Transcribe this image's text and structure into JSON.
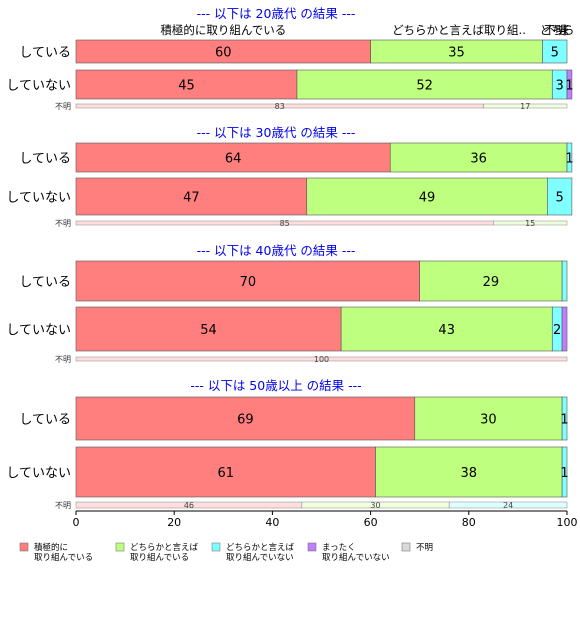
{
  "chart_data": {
    "type": "bar",
    "orientation": "horizontal",
    "stacked": true,
    "percent": true,
    "xlim": [
      0,
      100
    ],
    "x_ticks": [
      "0",
      "20",
      "40",
      "60",
      "80",
      "100"
    ],
    "category_labels": [
      "積極的に取り組んでいる",
      "どちらかと言えば取り組..",
      "どちらかと言えば取り組んでいない",
      "まったく取り組んでいない",
      "不明"
    ],
    "colors": {
      "active": "#ff7f7f",
      "somewhat_active": "#bfff7f",
      "somewhat_inactive": "#7fffff",
      "not_active": "#bf7fff",
      "unknown": "#d9d9d9",
      "unknown_strip_1": "#ffdede",
      "unknown_strip_2": "#f0ffde",
      "unknown_strip_3": "#deffff",
      "section_title": "#0000ee"
    },
    "legend": {
      "position": "bottom",
      "entries": [
        {
          "label": "積極的に\n取り組んでいる",
          "color": "#ff7f7f"
        },
        {
          "label": "どちらかと言えば\n取り組んでいる",
          "color": "#bfff7f"
        },
        {
          "label": "どちらかと言えば\n取り組んでいない",
          "color": "#7fffff"
        },
        {
          "label": "まったく\n取り組んでいない",
          "color": "#bf7fff"
        },
        {
          "label": "不明",
          "color": "#d9d9d9"
        }
      ]
    },
    "top_header_labels": [
      {
        "text": "積極的に取り組んでいる",
        "at": 30
      },
      {
        "text": "どちらかと言えば取り組..",
        "at": 78
      },
      {
        "text": "どちら",
        "at": 98
      },
      {
        "text": "ま",
        "at": 99.4
      },
      {
        "text": "不明",
        "at": 100
      }
    ],
    "unknown_row_label": "不明",
    "panels": [
      {
        "title": "--- 以下は 20歳代 の結果 ---",
        "rows": [
          {
            "label": "している",
            "values": [
              60,
              35,
              5,
              0,
              0
            ],
            "labels": [
              "60",
              "35",
              "5",
              "",
              ""
            ]
          },
          {
            "label": "していない",
            "values": [
              45,
              52,
              3,
              1,
              0
            ],
            "labels": [
              "45",
              "52",
              "3",
              "1",
              ""
            ]
          }
        ],
        "unknown_strip": {
          "values": [
            83,
            17
          ],
          "labels": [
            "83",
            "17"
          ]
        }
      },
      {
        "title": "--- 以下は 30歳代 の結果 ---",
        "rows": [
          {
            "label": "している",
            "values": [
              64,
              36,
              1,
              0,
              0
            ],
            "labels": [
              "64",
              "36",
              "1",
              "",
              ""
            ]
          },
          {
            "label": "していない",
            "values": [
              47,
              49,
              5,
              0,
              0
            ],
            "labels": [
              "47",
              "49",
              "5",
              "",
              ""
            ]
          }
        ],
        "unknown_strip": {
          "values": [
            85,
            15
          ],
          "labels": [
            "85",
            "15"
          ]
        }
      },
      {
        "title": "--- 以下は 40歳代 の結果 ---",
        "rows": [
          {
            "label": "している",
            "values": [
              70,
              29,
              1,
              0,
              0
            ],
            "labels": [
              "70",
              "29",
              "",
              "",
              ""
            ]
          },
          {
            "label": "していない",
            "values": [
              54,
              43,
              2,
              1,
              0
            ],
            "labels": [
              "54",
              "43",
              "2",
              "",
              ""
            ]
          }
        ],
        "unknown_strip": {
          "values": [
            100
          ],
          "labels": [
            "100"
          ]
        }
      },
      {
        "title": "--- 以下は 50歳以上 の結果 ---",
        "rows": [
          {
            "label": "している",
            "values": [
              69,
              30,
              1,
              0,
              0
            ],
            "labels": [
              "69",
              "30",
              "1",
              "",
              ""
            ]
          },
          {
            "label": "していない",
            "values": [
              61,
              38,
              1,
              0,
              0
            ],
            "labels": [
              "61",
              "38",
              "1",
              "",
              ""
            ]
          }
        ],
        "unknown_strip": {
          "values": [
            46,
            30,
            24
          ],
          "labels": [
            "46",
            "30",
            "24"
          ]
        }
      }
    ]
  }
}
